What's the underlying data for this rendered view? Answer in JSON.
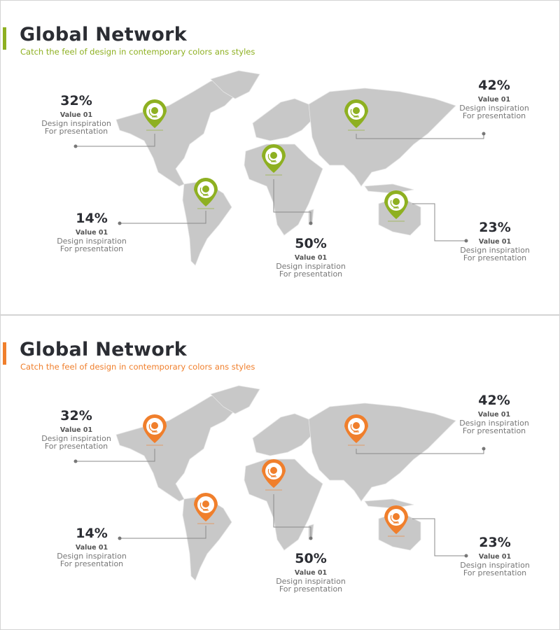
{
  "slides": [
    {
      "title": "Global Network",
      "subtitle": "Catch the feel of design in contemporary colors ans styles",
      "accent_color": "#8eb021",
      "labels": [
        {
          "percent": "32%",
          "value": "Value 01",
          "line1": "Design inspiration",
          "line2": "For presentation"
        },
        {
          "percent": "42%",
          "value": "Value 01",
          "line1": "Design inspiration",
          "line2": "For presentation"
        },
        {
          "percent": "14%",
          "value": "Value 01",
          "line1": "Design inspiration",
          "line2": "For presentation"
        },
        {
          "percent": "50%",
          "value": "Value 01",
          "line1": "Design inspiration",
          "line2": "For presentation"
        },
        {
          "percent": "23%",
          "value": "Value 01",
          "line1": "Design inspiration",
          "line2": "For presentation"
        }
      ],
      "pin_icon": "globe-icon"
    },
    {
      "title": "Global Network",
      "subtitle": "Catch the feel of design in contemporary colors ans styles",
      "accent_color": "#f07f2c",
      "labels": [
        {
          "percent": "32%",
          "value": "Value 01",
          "line1": "Design inspiration",
          "line2": "For presentation"
        },
        {
          "percent": "42%",
          "value": "Value 01",
          "line1": "Design inspiration",
          "line2": "For presentation"
        },
        {
          "percent": "14%",
          "value": "Value 01",
          "line1": "Design inspiration",
          "line2": "For presentation"
        },
        {
          "percent": "50%",
          "value": "Value 01",
          "line1": "Design inspiration",
          "line2": "For presentation"
        },
        {
          "percent": "23%",
          "value": "Value 01",
          "line1": "Design inspiration",
          "line2": "For presentation"
        }
      ],
      "pin_icon": "globe-icon"
    }
  ],
  "map_color": "#c8c8c8",
  "line_color": "#8a8a8a"
}
